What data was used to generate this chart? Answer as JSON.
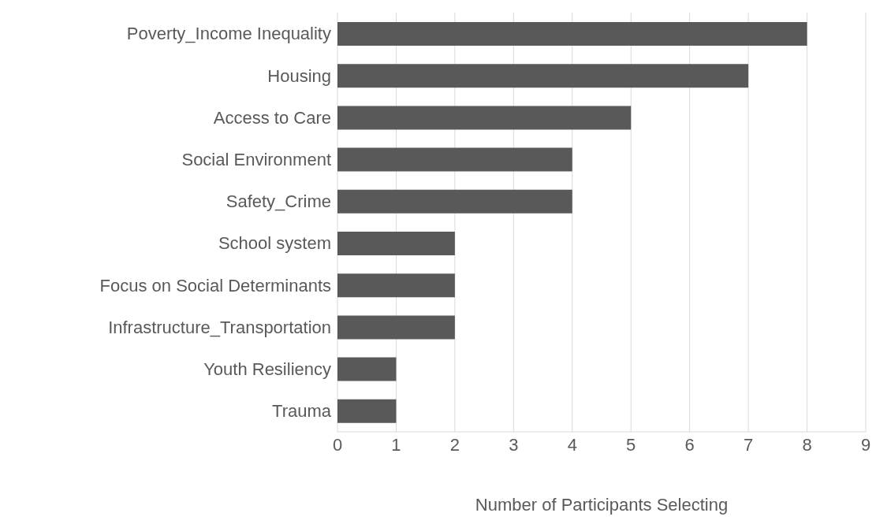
{
  "chart_data": {
    "type": "bar",
    "orientation": "horizontal",
    "categories": [
      "Poverty_Income Inequality",
      "Housing",
      "Access to Care",
      "Social Environment",
      "Safety_Crime",
      "School system",
      "Focus on Social Determinants",
      "Infrastructure_Transportation",
      "Youth Resiliency",
      "Trauma"
    ],
    "values": [
      8,
      7,
      5,
      4,
      4,
      2,
      2,
      2,
      1,
      1
    ],
    "color": "#595959",
    "xlim": [
      0,
      9
    ],
    "xticks": [
      0,
      1,
      2,
      3,
      4,
      5,
      6,
      7,
      8,
      9
    ],
    "xlabel": "Number of Participants  Selecting",
    "grid": "x"
  }
}
